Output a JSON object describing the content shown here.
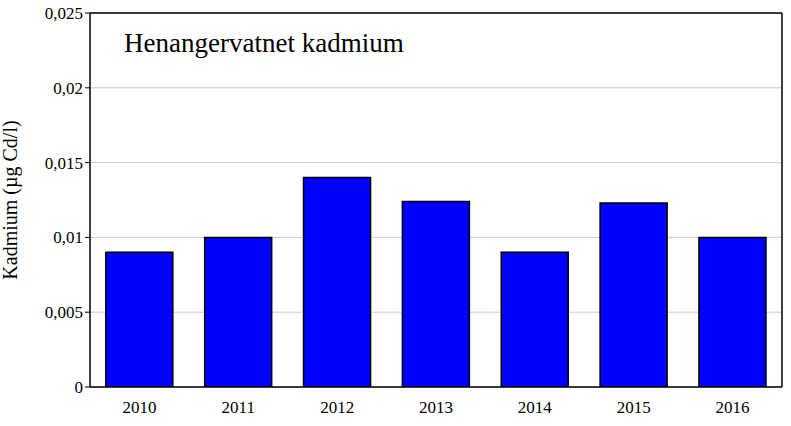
{
  "chart_data": {
    "type": "bar",
    "title": "Henangervatnet kadmium",
    "y_label": "Kadmium (µg Cd/l)",
    "categories": [
      "2010",
      "2011",
      "2012",
      "2013",
      "2014",
      "2015",
      "2016"
    ],
    "values": [
      0.009,
      0.01,
      0.014,
      0.0124,
      0.009,
      0.0123,
      0.01
    ],
    "color": "#0000ff",
    "ylim": [
      0,
      0.025
    ],
    "yticks": [
      {
        "value": 0,
        "label": "0"
      },
      {
        "value": 0.005,
        "label": "0,005"
      },
      {
        "value": 0.01,
        "label": "0,01"
      },
      {
        "value": 0.015,
        "label": "0,015"
      },
      {
        "value": 0.02,
        "label": "0,02"
      },
      {
        "value": 0.025,
        "label": "0,025"
      }
    ],
    "grid": true
  }
}
